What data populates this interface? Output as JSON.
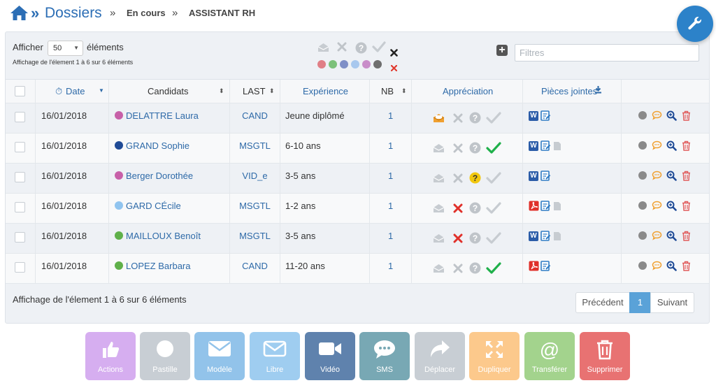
{
  "breadcrumb": {
    "root": "Dossiers",
    "sep": "»",
    "level1": "En cours",
    "level2": "ASSISTANT RH"
  },
  "controls": {
    "afficher": "Afficher",
    "page_size": "50",
    "elements": "éléments",
    "summary_top": "Affichage de l'élement 1 à 6 sur 6 éléments",
    "filter_placeholder": "Filtres",
    "plus": "+"
  },
  "color_filters": [
    "#e07f86",
    "#7cc17a",
    "#7f8fc7",
    "#a8c8ee",
    "#c98dc9",
    "#6e6e6e"
  ],
  "columns": {
    "date": "Date",
    "candidats": "Candidats",
    "last": "LAST",
    "experience": "Expérience",
    "nb": "NB",
    "appreciation": "Appréciation",
    "pieces": "Pièces jointes"
  },
  "rows": [
    {
      "date": "16/01/2018",
      "name": "DELATTRE Laura",
      "color": "#c760a8",
      "last": "CAND",
      "experience": "Jeune diplômé",
      "nb": "1",
      "mail_open": true,
      "x_active": false,
      "q_active": false,
      "check_active": false,
      "attach": [
        "word",
        "edit"
      ]
    },
    {
      "date": "16/01/2018",
      "name": "GRAND Sophie",
      "color": "#1f4b96",
      "last": "MSGTL",
      "experience": "6-10 ans",
      "nb": "1",
      "mail_open": false,
      "x_active": false,
      "q_active": false,
      "check_active": true,
      "attach": [
        "word",
        "edit",
        "doc"
      ]
    },
    {
      "date": "16/01/2018",
      "name": "Berger Dorothée",
      "color": "#c760a8",
      "last": "VID_e",
      "experience": "3-5 ans",
      "nb": "1",
      "mail_open": false,
      "x_active": false,
      "q_active": true,
      "check_active": false,
      "attach": [
        "word",
        "edit"
      ]
    },
    {
      "date": "16/01/2018",
      "name": "GARD CÉcile",
      "color": "#90c4ef",
      "last": "MSGTL",
      "experience": "1-2 ans",
      "nb": "1",
      "mail_open": false,
      "x_active": true,
      "q_active": false,
      "check_active": false,
      "attach": [
        "pdf",
        "edit",
        "doc"
      ]
    },
    {
      "date": "16/01/2018",
      "name": "MAILLOUX Benoît",
      "color": "#5fb04a",
      "last": "MSGTL",
      "experience": "3-5 ans",
      "nb": "1",
      "mail_open": false,
      "x_active": true,
      "q_active": false,
      "check_active": false,
      "attach": [
        "word",
        "edit",
        "doc"
      ]
    },
    {
      "date": "16/01/2018",
      "name": "LOPEZ Barbara",
      "color": "#5fb04a",
      "last": "CAND",
      "experience": "11-20 ans",
      "nb": "1",
      "mail_open": false,
      "x_active": false,
      "q_active": false,
      "check_active": true,
      "attach": [
        "pdf",
        "edit"
      ]
    }
  ],
  "footer": {
    "summary": "Affichage de l'élement 1 à 6 sur 6 éléments",
    "prev": "Précédent",
    "page": "1",
    "next": "Suivant"
  },
  "actions": [
    {
      "label": "Actions",
      "color": "#d6aef0",
      "icon": "thumb-icon"
    },
    {
      "label": "Pastille",
      "color": "#c8ced4",
      "icon": "circle-icon"
    },
    {
      "label": "Modèle",
      "color": "#92c3ea",
      "icon": "envelope-icon"
    },
    {
      "label": "Libre",
      "color": "#9fcdf0",
      "icon": "envelope-outline-icon"
    },
    {
      "label": "Vidéo",
      "color": "#5f82ad",
      "icon": "video-icon"
    },
    {
      "label": "SMS",
      "color": "#78a8b4",
      "icon": "chat-icon"
    },
    {
      "label": "Déplacer",
      "color": "#c8ced4",
      "icon": "share-icon"
    },
    {
      "label": "Dupliquer",
      "color": "#fcc98c",
      "icon": "expand-icon"
    },
    {
      "label": "Transférer",
      "color": "#a3d38d",
      "icon": "at-icon"
    },
    {
      "label": "Supprimer",
      "color": "#e87272",
      "icon": "trash-icon"
    }
  ]
}
